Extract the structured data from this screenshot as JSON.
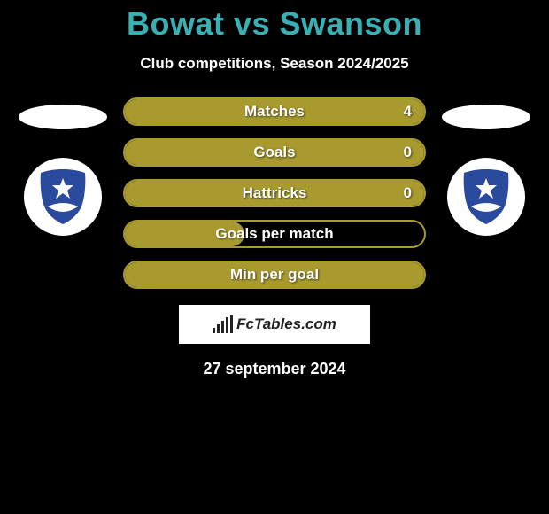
{
  "title": "Bowat vs Swanson",
  "subtitle": "Club competitions, Season 2024/2025",
  "date": "27 september 2024",
  "brand": "FcTables.com",
  "colors": {
    "title": "#3ab0b5",
    "bar_fill": "#a89a2f",
    "bar_border": "#a89a2f",
    "crest_shield": "#2a4a9e",
    "crest_star": "#ffffff",
    "background": "#000000"
  },
  "stats": [
    {
      "label": "Matches",
      "value_right": "4",
      "fill_percent": 100
    },
    {
      "label": "Goals",
      "value_right": "0",
      "fill_percent": 100
    },
    {
      "label": "Hattricks",
      "value_right": "0",
      "fill_percent": 100
    },
    {
      "label": "Goals per match",
      "value_right": "",
      "fill_percent": 40
    },
    {
      "label": "Min per goal",
      "value_right": "",
      "fill_percent": 100
    }
  ],
  "left_player": {
    "has_oval": true,
    "has_crest": true
  },
  "right_player": {
    "has_oval": true,
    "has_crest": true
  }
}
